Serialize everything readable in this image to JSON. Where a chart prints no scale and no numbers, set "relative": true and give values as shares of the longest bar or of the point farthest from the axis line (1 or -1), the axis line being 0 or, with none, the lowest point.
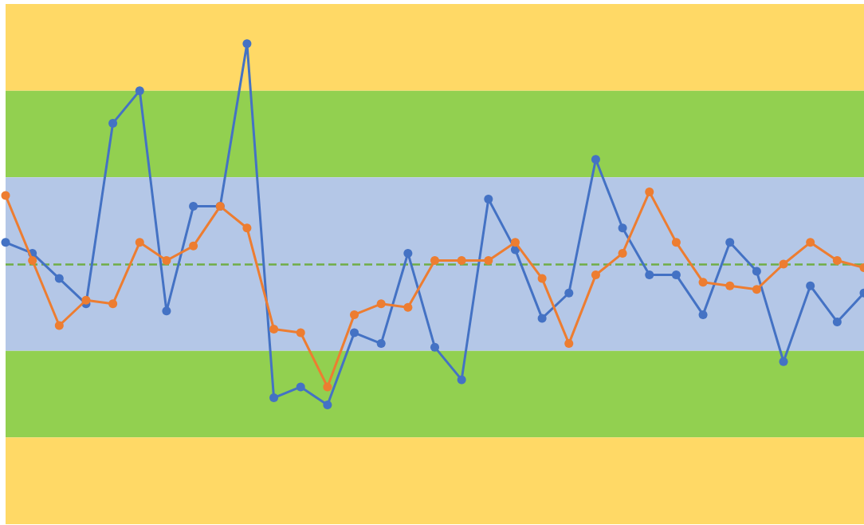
{
  "chart_data": {
    "type": "line",
    "relative": true,
    "categories": [
      null,
      null,
      null,
      null,
      null,
      null,
      null,
      null,
      null,
      null,
      null,
      null,
      null,
      null,
      null,
      null,
      null,
      null,
      null,
      null,
      null,
      null,
      null,
      null,
      null,
      null,
      null,
      null,
      null,
      null,
      null,
      null,
      null
    ],
    "series": [
      {
        "color": "#4472c4",
        "values": [
          0.45,
          0.42,
          0.35,
          0.28,
          0.78,
          0.87,
          0.26,
          0.55,
          0.55,
          1.0,
          0.02,
          0.05,
          0,
          0.2,
          0.17,
          0.42,
          0.16,
          0.07,
          0.57,
          0.43,
          0.24,
          0.31,
          0.68,
          0.49,
          0.36,
          0.36,
          0.25,
          0.45,
          0.37,
          0.12,
          0.33,
          0.23,
          0.31
        ]
      },
      {
        "color": "#ed7d31",
        "values": [
          0.58,
          0.4,
          0.22,
          0.29,
          0.28,
          0.45,
          0.4,
          0.44,
          0.55,
          0.49,
          0.21,
          0.2,
          0.05,
          0.25,
          0.28,
          0.27,
          0.4,
          0.4,
          0.4,
          0.45,
          0.35,
          0.17,
          0.36,
          0.42,
          0.59,
          0.45,
          0.34,
          0.33,
          0.32,
          0.39,
          0.45,
          0.4,
          0.38
        ]
      }
    ],
    "bands": [
      {
        "axis": "y",
        "from": 0.87,
        "to": 1.11,
        "color": "#ffd966"
      },
      {
        "axis": "y",
        "from": 0.63,
        "to": 0.87,
        "color": "#92d050"
      },
      {
        "axis": "y",
        "from": 0.15,
        "to": 0.63,
        "color": "#b4c7e7"
      },
      {
        "axis": "y",
        "from": -0.09,
        "to": 0.15,
        "color": "#92d050"
      },
      {
        "axis": "y",
        "from": -0.33,
        "to": -0.09,
        "color": "#ffd966"
      }
    ],
    "ref_lines": [
      {
        "axis": "y",
        "value": 0.39,
        "color": "#70ad47",
        "line_style": "dashed"
      }
    ],
    "marker": "circle",
    "line_style": "solid"
  }
}
